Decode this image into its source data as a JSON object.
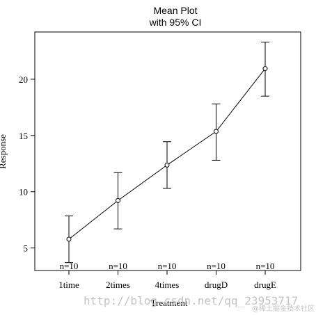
{
  "chart_data": {
    "type": "line",
    "title": "Mean Plot",
    "subtitle": "with 95% CI",
    "xlabel": "Treatment",
    "ylabel": "Response",
    "categories": [
      "1time",
      "2times",
      "4times",
      "drugD",
      "drugE"
    ],
    "means": [
      5.78,
      9.22,
      12.37,
      15.36,
      20.95
    ],
    "ci_lower": [
      3.7,
      6.7,
      10.3,
      12.8,
      18.5
    ],
    "ci_upper": [
      7.85,
      11.7,
      14.45,
      17.8,
      23.3
    ],
    "n_labels": [
      "n=10",
      "n=10",
      "n=10",
      "n=10",
      "n=10"
    ],
    "yticks": [
      5,
      10,
      15,
      20
    ],
    "ylim": [
      3.0,
      24.2
    ],
    "grid": false,
    "legend": "none"
  },
  "watermark": {
    "text": "http://blog.csdn.net/qq_23953717",
    "small_text": "@稀土掘金技术社区"
  }
}
